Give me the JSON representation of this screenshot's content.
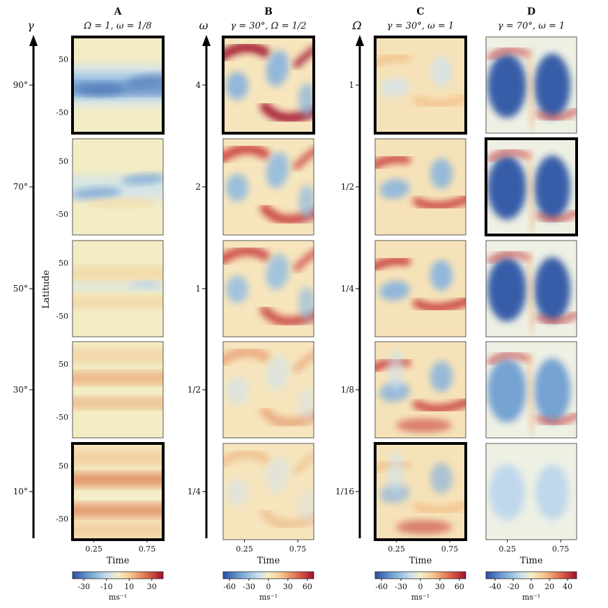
{
  "chart_data": {
    "type": "heatmap",
    "description_axes": {
      "xlabel": "Time",
      "ylabel": "Latitude",
      "unit": "ms⁻¹",
      "xticks": [
        "0.25",
        "0.75"
      ],
      "yticks": [
        "50",
        "-50"
      ]
    },
    "columns": [
      {
        "id": "A",
        "letter": "A",
        "subtitle": "Ω = 1,  ω = 1/8",
        "param": "γ",
        "param_values": [
          "90°",
          "70°",
          "50°",
          "30°",
          "10°"
        ],
        "highlighted": [
          0,
          4
        ],
        "colorbar": {
          "ticks": [
            "-30",
            "-10",
            "10",
            "30"
          ],
          "range": [
            -40,
            40
          ],
          "label": "ms⁻¹"
        }
      },
      {
        "id": "B",
        "letter": "B",
        "subtitle": "γ = 30°,  Ω = 1/2",
        "param": "ω",
        "param_values": [
          "4",
          "2",
          "1",
          "1/2",
          "1/4"
        ],
        "highlighted": [
          0
        ],
        "colorbar": {
          "ticks": [
            "-60",
            "-30",
            "0",
            "30",
            "60"
          ],
          "range": [
            -70,
            70
          ],
          "label": "ms⁻¹"
        }
      },
      {
        "id": "C",
        "letter": "C",
        "subtitle": "γ = 30°,  ω = 1",
        "param": "Ω",
        "param_values": [
          "1",
          "1/2",
          "1/4",
          "1/8",
          "1/16"
        ],
        "highlighted": [
          0,
          4
        ],
        "colorbar": {
          "ticks": [
            "-60",
            "-30",
            "0",
            "30",
            "60"
          ],
          "range": [
            -70,
            70
          ],
          "label": "ms⁻¹"
        }
      },
      {
        "id": "D",
        "letter": "D",
        "subtitle": "γ = 70°,  ω = 1",
        "param": "",
        "param_values": [],
        "highlighted": [
          1
        ],
        "colorbar": {
          "ticks": [
            "-40",
            "-20",
            "0",
            "20",
            "40"
          ],
          "range": [
            -50,
            50
          ],
          "label": "ms⁻¹"
        }
      }
    ]
  }
}
